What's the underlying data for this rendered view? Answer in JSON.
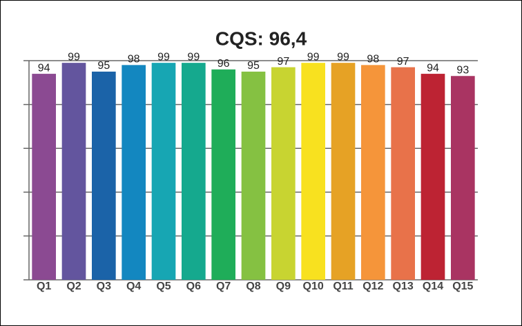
{
  "chart_data": {
    "type": "bar",
    "title": "CQS: 96,4",
    "categories": [
      "Q1",
      "Q2",
      "Q3",
      "Q4",
      "Q5",
      "Q6",
      "Q7",
      "Q8",
      "Q9",
      "Q10",
      "Q11",
      "Q12",
      "Q13",
      "Q14",
      "Q15"
    ],
    "values": [
      94,
      99,
      95,
      98,
      99,
      99,
      96,
      95,
      97,
      99,
      99,
      98,
      97,
      94,
      93
    ],
    "colors": [
      "#8b4a92",
      "#63559e",
      "#1b63a8",
      "#1387c0",
      "#17a6b3",
      "#15a98e",
      "#1fad59",
      "#85c142",
      "#c8d431",
      "#f8e11f",
      "#e6a225",
      "#f5953a",
      "#e8724a",
      "#bd2333",
      "#a93462"
    ],
    "ylim": [
      0,
      100
    ],
    "yticks": [
      0,
      20,
      40,
      60,
      80,
      100
    ],
    "grid": true
  }
}
